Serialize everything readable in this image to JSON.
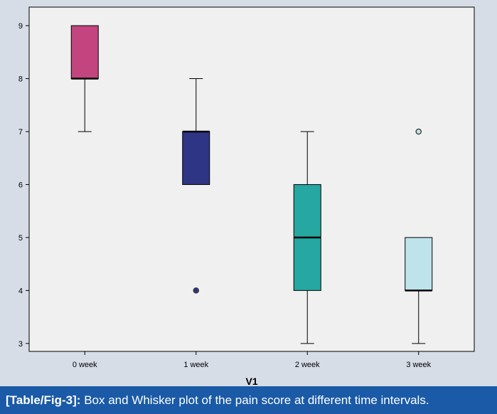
{
  "caption": {
    "tag": "[Table/Fig-3]:",
    "text": "Box and Whisker plot of the pain score at different time intervals."
  },
  "chart_data": {
    "type": "box",
    "title": "",
    "xlabel": "V1",
    "ylabel": "",
    "ylim": [
      2.85,
      9.35
    ],
    "yticks": [
      3,
      4,
      5,
      6,
      7,
      8,
      9
    ],
    "grid": false,
    "categories": [
      "0 week",
      "1 week",
      "2 week",
      "3 week"
    ],
    "boxes": [
      {
        "name": "0 week",
        "min": 7,
        "q1": 8,
        "median": 8,
        "q3": 9,
        "max": 9,
        "outliers": [],
        "color": "#c2457f"
      },
      {
        "name": "1 week",
        "min": 6,
        "q1": 6,
        "median": 7,
        "q3": 7,
        "max": 8,
        "outliers": [
          4
        ],
        "color": "#2e3584"
      },
      {
        "name": "2 week",
        "min": 3,
        "q1": 4,
        "median": 5,
        "q3": 6,
        "max": 7,
        "outliers": [],
        "color": "#26a7a1"
      },
      {
        "name": "3 week",
        "min": 3,
        "q1": 4,
        "median": 4,
        "q3": 5,
        "max": 5,
        "outliers": [
          7
        ],
        "color": "#bfe3ea"
      }
    ]
  }
}
